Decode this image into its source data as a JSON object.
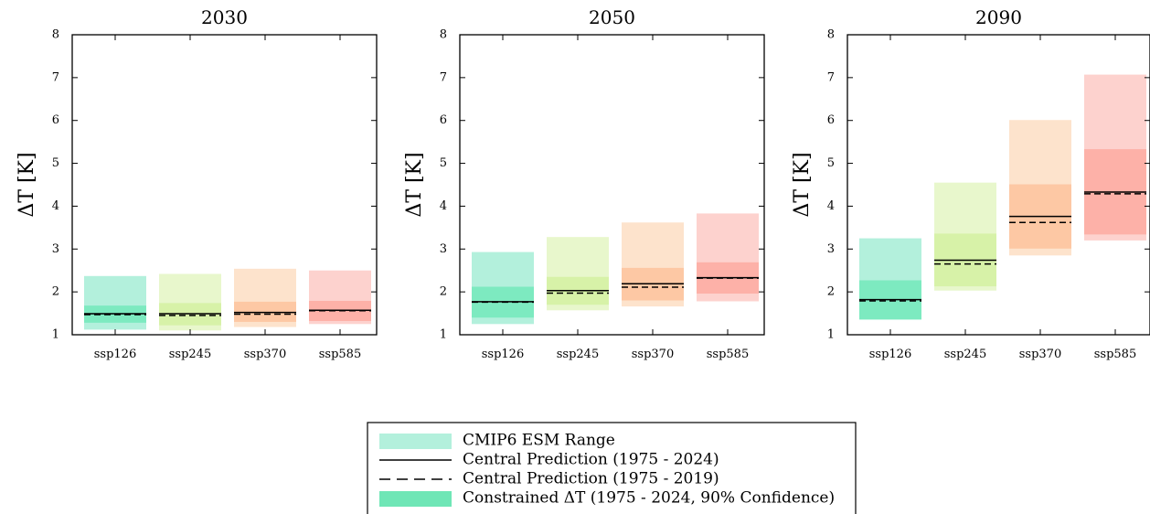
{
  "chart_data": {
    "type": "bar",
    "ylabel": "ΔT [K]",
    "ylim": [
      1,
      8
    ],
    "yticks": [
      "1",
      "2",
      "3",
      "4",
      "5",
      "6",
      "7",
      "8"
    ],
    "categories": [
      "ssp126",
      "ssp245",
      "ssp370",
      "ssp585"
    ],
    "category_colors": {
      "range": [
        "#b3f0dc",
        "#e8f7cc",
        "#fde3cc",
        "#fdd2ce"
      ],
      "constrained": [
        "#7deac0",
        "#d7f2a8",
        "#fdc8a4",
        "#fdb1a8"
      ]
    },
    "panels": [
      {
        "title": "2030",
        "esm_range": [
          [
            1.12,
            2.37
          ],
          [
            1.1,
            2.42
          ],
          [
            1.18,
            2.54
          ],
          [
            1.25,
            2.5
          ]
        ],
        "constrained": [
          [
            1.28,
            1.68
          ],
          [
            1.22,
            1.74
          ],
          [
            1.3,
            1.77
          ],
          [
            1.32,
            1.79
          ]
        ],
        "central_2024": [
          1.49,
          1.49,
          1.52,
          1.57
        ],
        "central_2019": [
          1.47,
          1.45,
          1.48,
          1.56
        ]
      },
      {
        "title": "2050",
        "esm_range": [
          [
            1.25,
            2.93
          ],
          [
            1.57,
            3.28
          ],
          [
            1.66,
            3.62
          ],
          [
            1.78,
            3.83
          ]
        ],
        "constrained": [
          [
            1.4,
            2.12
          ],
          [
            1.7,
            2.35
          ],
          [
            1.8,
            2.56
          ],
          [
            1.96,
            2.69
          ]
        ],
        "central_2024": [
          1.77,
          2.03,
          2.19,
          2.33
        ],
        "central_2019": [
          1.76,
          1.97,
          2.11,
          2.32
        ]
      },
      {
        "title": "2090",
        "esm_range": [
          [
            1.35,
            3.25
          ],
          [
            2.03,
            4.55
          ],
          [
            2.85,
            6.01
          ],
          [
            3.2,
            7.07
          ]
        ],
        "constrained": [
          [
            1.36,
            2.27
          ],
          [
            2.13,
            3.36
          ],
          [
            3.01,
            4.51
          ],
          [
            3.34,
            5.33
          ]
        ],
        "central_2024": [
          1.82,
          2.74,
          3.76,
          4.33
        ],
        "central_2019": [
          1.79,
          2.65,
          3.62,
          4.29
        ]
      }
    ],
    "legend": [
      {
        "label": "CMIP6 ESM Range",
        "kind": "patch",
        "color": "#b3f0dc"
      },
      {
        "label": "Central Prediction (1975 - 2024)",
        "kind": "solid-line"
      },
      {
        "label": "Central Prediction (1975 - 2019)",
        "kind": "dashed-line"
      },
      {
        "label": "Constrained ΔT (1975 - 2024, 90% Confidence)",
        "kind": "patch",
        "color": "#6fe6b6"
      }
    ],
    "grid": false,
    "legend_position": "bottom-center"
  }
}
